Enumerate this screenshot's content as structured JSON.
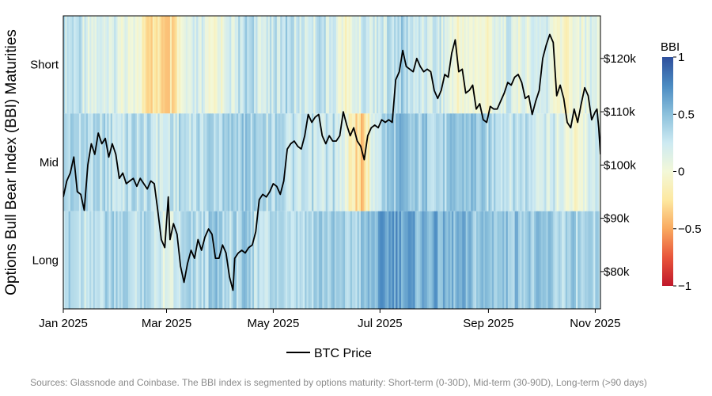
{
  "chart_data": {
    "type": "heatmap",
    "y_left_label": "Options Bull Bear Index (BBI) Maturities",
    "maturity_labels": [
      "Short",
      "Mid",
      "Long"
    ],
    "x_start": "2025-01-01",
    "x_end": "2025-11-04",
    "x_ticks": [
      {
        "date": "2025-01-01",
        "label": "Jan 2025"
      },
      {
        "date": "2025-03-01",
        "label": "Mar 2025"
      },
      {
        "date": "2025-05-01",
        "label": "May 2025"
      },
      {
        "date": "2025-07-01",
        "label": "Jul 2025"
      },
      {
        "date": "2025-09-01",
        "label": "Sep 2025"
      },
      {
        "date": "2025-11-01",
        "label": "Nov 2025"
      }
    ],
    "y_right_ticks": [
      {
        "value": 80000,
        "label": "$80k"
      },
      {
        "value": 90000,
        "label": "$90k"
      },
      {
        "value": 100000,
        "label": "$100k"
      },
      {
        "value": 110000,
        "label": "$110k"
      },
      {
        "value": 120000,
        "label": "$120k"
      }
    ],
    "price_range": [
      73000,
      128000
    ],
    "colorbar": {
      "title": "BBI",
      "range": [
        -1,
        1
      ],
      "ticks": [
        {
          "value": 1,
          "label": "1"
        },
        {
          "value": 0.5,
          "label": "0.5"
        },
        {
          "value": 0,
          "label": "0"
        },
        {
          "value": -0.5,
          "label": "−0.5"
        },
        {
          "value": -1,
          "label": "−1"
        }
      ],
      "colors": [
        "#c0182b",
        "#e8553b",
        "#f9a95f",
        "#fde8a0",
        "#f3f8d8",
        "#cdeaf2",
        "#8cc1dc",
        "#4b8bc2",
        "#2e4f9c"
      ]
    },
    "bbi_segments": {
      "short": [
        [
          "2025-01-01",
          0.3
        ],
        [
          "2025-01-08",
          0.35
        ],
        [
          "2025-01-15",
          0.05
        ],
        [
          "2025-01-20",
          0.15
        ],
        [
          "2025-01-26",
          0.25
        ],
        [
          "2025-02-01",
          0.1
        ],
        [
          "2025-02-08",
          -0.05
        ],
        [
          "2025-02-12",
          0.05
        ],
        [
          "2025-02-15",
          -0.15
        ],
        [
          "2025-02-20",
          -0.25
        ],
        [
          "2025-03-01",
          -0.3
        ],
        [
          "2025-03-05",
          -0.2
        ],
        [
          "2025-03-10",
          0.1
        ],
        [
          "2025-03-15",
          0.25
        ],
        [
          "2025-03-22",
          0.2
        ],
        [
          "2025-03-28",
          -0.05
        ],
        [
          "2025-04-02",
          0.05
        ],
        [
          "2025-04-08",
          0.2
        ],
        [
          "2025-04-14",
          0.35
        ],
        [
          "2025-04-20",
          0.3
        ],
        [
          "2025-04-26",
          0.15
        ],
        [
          "2025-05-01",
          0.25
        ],
        [
          "2025-05-08",
          0.35
        ],
        [
          "2025-05-15",
          0.25
        ],
        [
          "2025-05-22",
          0.15
        ],
        [
          "2025-05-28",
          0.3
        ],
        [
          "2025-06-03",
          0.2
        ],
        [
          "2025-06-10",
          -0.05
        ],
        [
          "2025-06-16",
          0.1
        ],
        [
          "2025-06-22",
          0.25
        ],
        [
          "2025-06-28",
          0.15
        ],
        [
          "2025-07-05",
          0.3
        ],
        [
          "2025-07-12",
          0.4
        ],
        [
          "2025-07-19",
          0.3
        ],
        [
          "2025-07-26",
          0.15
        ],
        [
          "2025-08-02",
          0.25
        ],
        [
          "2025-08-09",
          0.1
        ],
        [
          "2025-08-16",
          -0.05
        ],
        [
          "2025-08-23",
          0.05
        ],
        [
          "2025-08-30",
          -0.05
        ],
        [
          "2025-09-06",
          0.1
        ],
        [
          "2025-09-13",
          0.2
        ],
        [
          "2025-09-20",
          0.05
        ],
        [
          "2025-09-27",
          0.25
        ],
        [
          "2025-10-04",
          0.2
        ],
        [
          "2025-10-10",
          0.0
        ],
        [
          "2025-10-16",
          -0.1
        ],
        [
          "2025-10-22",
          0.05
        ],
        [
          "2025-10-28",
          0.15
        ],
        [
          "2025-11-04",
          0.1
        ]
      ],
      "mid": [
        [
          "2025-01-01",
          0.35
        ],
        [
          "2025-01-10",
          0.4
        ],
        [
          "2025-01-18",
          0.3
        ],
        [
          "2025-01-25",
          0.35
        ],
        [
          "2025-02-01",
          0.25
        ],
        [
          "2025-02-10",
          0.35
        ],
        [
          "2025-02-18",
          0.3
        ],
        [
          "2025-02-25",
          0.2
        ],
        [
          "2025-03-04",
          0.25
        ],
        [
          "2025-03-10",
          0.35
        ],
        [
          "2025-03-18",
          0.3
        ],
        [
          "2025-03-26",
          0.4
        ],
        [
          "2025-04-03",
          0.35
        ],
        [
          "2025-04-10",
          0.45
        ],
        [
          "2025-04-18",
          0.4
        ],
        [
          "2025-04-26",
          0.3
        ],
        [
          "2025-05-04",
          0.35
        ],
        [
          "2025-05-12",
          0.3
        ],
        [
          "2025-05-20",
          0.35
        ],
        [
          "2025-05-28",
          0.25
        ],
        [
          "2025-06-04",
          0.3
        ],
        [
          "2025-06-10",
          0.2
        ],
        [
          "2025-06-14",
          -0.2
        ],
        [
          "2025-06-20",
          -0.35
        ],
        [
          "2025-06-24",
          -0.1
        ],
        [
          "2025-06-28",
          0.25
        ],
        [
          "2025-07-05",
          0.45
        ],
        [
          "2025-07-12",
          0.5
        ],
        [
          "2025-07-20",
          0.4
        ],
        [
          "2025-07-28",
          0.45
        ],
        [
          "2025-08-05",
          0.35
        ],
        [
          "2025-08-14",
          0.45
        ],
        [
          "2025-08-22",
          0.5
        ],
        [
          "2025-08-30",
          0.35
        ],
        [
          "2025-09-06",
          0.4
        ],
        [
          "2025-09-14",
          0.3
        ],
        [
          "2025-09-22",
          0.35
        ],
        [
          "2025-09-30",
          0.25
        ],
        [
          "2025-10-08",
          0.2
        ],
        [
          "2025-10-15",
          0.05
        ],
        [
          "2025-10-20",
          -0.05
        ],
        [
          "2025-10-26",
          0.1
        ],
        [
          "2025-11-04",
          0.25
        ]
      ],
      "long": [
        [
          "2025-01-01",
          0.4
        ],
        [
          "2025-01-08",
          0.3
        ],
        [
          "2025-01-15",
          0.2
        ],
        [
          "2025-01-22",
          0.35
        ],
        [
          "2025-02-01",
          0.45
        ],
        [
          "2025-02-10",
          0.3
        ],
        [
          "2025-02-20",
          0.35
        ],
        [
          "2025-02-26",
          0.15
        ],
        [
          "2025-03-02",
          0.0
        ],
        [
          "2025-03-05",
          0.2
        ],
        [
          "2025-03-12",
          0.35
        ],
        [
          "2025-03-20",
          0.3
        ],
        [
          "2025-03-28",
          0.45
        ],
        [
          "2025-04-05",
          0.35
        ],
        [
          "2025-04-14",
          0.4
        ],
        [
          "2025-04-22",
          0.3
        ],
        [
          "2025-05-01",
          0.35
        ],
        [
          "2025-05-10",
          0.4
        ],
        [
          "2025-05-18",
          0.35
        ],
        [
          "2025-05-26",
          0.45
        ],
        [
          "2025-06-04",
          0.4
        ],
        [
          "2025-06-14",
          0.35
        ],
        [
          "2025-06-22",
          0.45
        ],
        [
          "2025-07-01",
          0.6
        ],
        [
          "2025-07-08",
          0.7
        ],
        [
          "2025-07-15",
          0.65
        ],
        [
          "2025-07-22",
          0.55
        ],
        [
          "2025-07-30",
          0.6
        ],
        [
          "2025-08-07",
          0.5
        ],
        [
          "2025-08-15",
          0.55
        ],
        [
          "2025-08-23",
          0.45
        ],
        [
          "2025-09-01",
          0.5
        ],
        [
          "2025-09-10",
          0.45
        ],
        [
          "2025-09-18",
          0.5
        ],
        [
          "2025-09-26",
          0.4
        ],
        [
          "2025-10-04",
          0.45
        ],
        [
          "2025-10-12",
          0.35
        ],
        [
          "2025-10-20",
          0.4
        ],
        [
          "2025-10-28",
          0.3
        ],
        [
          "2025-11-04",
          0.35
        ]
      ]
    },
    "btc_price": {
      "name": "BTC Price",
      "points": [
        [
          "2025-01-01",
          94000
        ],
        [
          "2025-01-03",
          97000
        ],
        [
          "2025-01-05",
          98500
        ],
        [
          "2025-01-07",
          101500
        ],
        [
          "2025-01-09",
          95000
        ],
        [
          "2025-01-11",
          94500
        ],
        [
          "2025-01-13",
          91500
        ],
        [
          "2025-01-15",
          100000
        ],
        [
          "2025-01-17",
          104000
        ],
        [
          "2025-01-19",
          102000
        ],
        [
          "2025-01-21",
          106000
        ],
        [
          "2025-01-23",
          104000
        ],
        [
          "2025-01-25",
          105000
        ],
        [
          "2025-01-27",
          101500
        ],
        [
          "2025-01-29",
          104000
        ],
        [
          "2025-01-31",
          102000
        ],
        [
          "2025-02-02",
          97500
        ],
        [
          "2025-02-04",
          98500
        ],
        [
          "2025-02-06",
          96500
        ],
        [
          "2025-02-08",
          97000
        ],
        [
          "2025-02-10",
          97500
        ],
        [
          "2025-02-12",
          96000
        ],
        [
          "2025-02-14",
          97500
        ],
        [
          "2025-02-16",
          96500
        ],
        [
          "2025-02-18",
          95500
        ],
        [
          "2025-02-20",
          97000
        ],
        [
          "2025-02-22",
          96500
        ],
        [
          "2025-02-24",
          91500
        ],
        [
          "2025-02-26",
          86000
        ],
        [
          "2025-02-28",
          84500
        ],
        [
          "2025-03-02",
          94000
        ],
        [
          "2025-03-03",
          86000
        ],
        [
          "2025-03-05",
          89000
        ],
        [
          "2025-03-07",
          87000
        ],
        [
          "2025-03-09",
          81000
        ],
        [
          "2025-03-11",
          78000
        ],
        [
          "2025-03-13",
          81500
        ],
        [
          "2025-03-15",
          84000
        ],
        [
          "2025-03-17",
          82500
        ],
        [
          "2025-03-19",
          86000
        ],
        [
          "2025-03-21",
          84000
        ],
        [
          "2025-03-23",
          86500
        ],
        [
          "2025-03-25",
          88000
        ],
        [
          "2025-03-27",
          87000
        ],
        [
          "2025-03-29",
          82500
        ],
        [
          "2025-03-31",
          82500
        ],
        [
          "2025-04-02",
          85000
        ],
        [
          "2025-04-04",
          83500
        ],
        [
          "2025-04-06",
          79000
        ],
        [
          "2025-04-08",
          76500
        ],
        [
          "2025-04-09",
          82500
        ],
        [
          "2025-04-11",
          83500
        ],
        [
          "2025-04-13",
          84000
        ],
        [
          "2025-04-15",
          83500
        ],
        [
          "2025-04-17",
          84500
        ],
        [
          "2025-04-19",
          85000
        ],
        [
          "2025-04-21",
          87500
        ],
        [
          "2025-04-23",
          93500
        ],
        [
          "2025-04-25",
          94500
        ],
        [
          "2025-04-27",
          94000
        ],
        [
          "2025-04-29",
          95000
        ],
        [
          "2025-05-01",
          96500
        ],
        [
          "2025-05-03",
          96000
        ],
        [
          "2025-05-05",
          94500
        ],
        [
          "2025-05-07",
          97000
        ],
        [
          "2025-05-09",
          103000
        ],
        [
          "2025-05-11",
          104000
        ],
        [
          "2025-05-13",
          104500
        ],
        [
          "2025-05-15",
          103500
        ],
        [
          "2025-05-17",
          103000
        ],
        [
          "2025-05-19",
          105500
        ],
        [
          "2025-05-21",
          109500
        ],
        [
          "2025-05-23",
          108000
        ],
        [
          "2025-05-25",
          109000
        ],
        [
          "2025-05-27",
          109500
        ],
        [
          "2025-05-29",
          105500
        ],
        [
          "2025-05-31",
          104000
        ],
        [
          "2025-06-02",
          105500
        ],
        [
          "2025-06-04",
          104500
        ],
        [
          "2025-06-06",
          104500
        ],
        [
          "2025-06-08",
          105500
        ],
        [
          "2025-06-10",
          110000
        ],
        [
          "2025-06-12",
          107500
        ],
        [
          "2025-06-14",
          105500
        ],
        [
          "2025-06-16",
          107000
        ],
        [
          "2025-06-18",
          104500
        ],
        [
          "2025-06-20",
          103500
        ],
        [
          "2025-06-22",
          101000
        ],
        [
          "2025-06-24",
          105500
        ],
        [
          "2025-06-26",
          107000
        ],
        [
          "2025-06-28",
          107500
        ],
        [
          "2025-06-30",
          107000
        ],
        [
          "2025-07-02",
          108500
        ],
        [
          "2025-07-04",
          108000
        ],
        [
          "2025-07-06",
          108500
        ],
        [
          "2025-07-08",
          108000
        ],
        [
          "2025-07-10",
          116000
        ],
        [
          "2025-07-12",
          117500
        ],
        [
          "2025-07-14",
          121500
        ],
        [
          "2025-07-16",
          118500
        ],
        [
          "2025-07-18",
          118000
        ],
        [
          "2025-07-20",
          117500
        ],
        [
          "2025-07-22",
          120000
        ],
        [
          "2025-07-24",
          118500
        ],
        [
          "2025-07-26",
          117500
        ],
        [
          "2025-07-28",
          118000
        ],
        [
          "2025-07-30",
          117500
        ],
        [
          "2025-08-01",
          114000
        ],
        [
          "2025-08-03",
          112500
        ],
        [
          "2025-08-05",
          114000
        ],
        [
          "2025-08-07",
          117000
        ],
        [
          "2025-08-09",
          116500
        ],
        [
          "2025-08-11",
          121000
        ],
        [
          "2025-08-13",
          123500
        ],
        [
          "2025-08-15",
          117500
        ],
        [
          "2025-08-17",
          118000
        ],
        [
          "2025-08-19",
          113500
        ],
        [
          "2025-08-21",
          114000
        ],
        [
          "2025-08-23",
          115000
        ],
        [
          "2025-08-25",
          110500
        ],
        [
          "2025-08-27",
          111500
        ],
        [
          "2025-08-29",
          108500
        ],
        [
          "2025-08-31",
          108000
        ],
        [
          "2025-09-02",
          111000
        ],
        [
          "2025-09-04",
          110500
        ],
        [
          "2025-09-06",
          110500
        ],
        [
          "2025-09-08",
          112000
        ],
        [
          "2025-09-10",
          113500
        ],
        [
          "2025-09-12",
          115500
        ],
        [
          "2025-09-14",
          115000
        ],
        [
          "2025-09-16",
          116500
        ],
        [
          "2025-09-18",
          117000
        ],
        [
          "2025-09-20",
          115500
        ],
        [
          "2025-09-22",
          112500
        ],
        [
          "2025-09-24",
          113000
        ],
        [
          "2025-09-26",
          109500
        ],
        [
          "2025-09-28",
          112000
        ],
        [
          "2025-09-30",
          114000
        ],
        [
          "2025-10-02",
          120000
        ],
        [
          "2025-10-04",
          122500
        ],
        [
          "2025-10-06",
          124500
        ],
        [
          "2025-10-08",
          123000
        ],
        [
          "2025-10-10",
          113000
        ],
        [
          "2025-10-12",
          115000
        ],
        [
          "2025-10-14",
          112500
        ],
        [
          "2025-10-16",
          108000
        ],
        [
          "2025-10-18",
          107000
        ],
        [
          "2025-10-20",
          110500
        ],
        [
          "2025-10-22",
          108000
        ],
        [
          "2025-10-24",
          111500
        ],
        [
          "2025-10-26",
          114500
        ],
        [
          "2025-10-28",
          113000
        ],
        [
          "2025-10-30",
          108500
        ],
        [
          "2025-11-01",
          110000
        ],
        [
          "2025-11-02",
          110500
        ],
        [
          "2025-11-03",
          107000
        ],
        [
          "2025-11-04",
          102000
        ]
      ]
    },
    "legend_label": "BTC Price",
    "source": "Sources: Glassnode and Coinbase. The BBI index is segmented by options maturity: Short-term (0-30D), Mid-term (30-90D), Long-term (>90 days)"
  }
}
